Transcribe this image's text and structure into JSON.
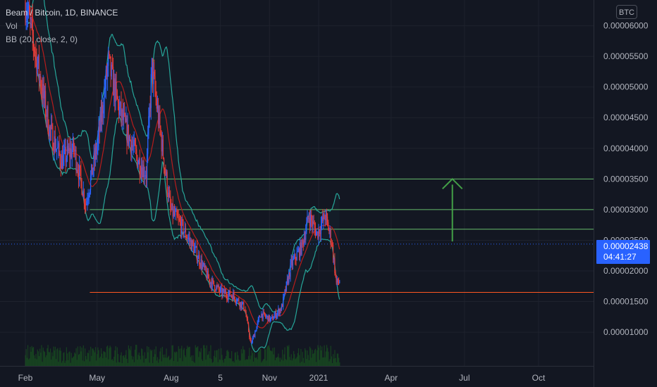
{
  "legend": {
    "symbol": "Beam / Bitcoin, 1D, BINANCE",
    "volume": "Vol",
    "indicator": "BB (20, close, 2, 0)"
  },
  "currency_button": "BTC",
  "price_tag": {
    "price": "0.00002438",
    "countdown": "04:41:27",
    "color": "#2962ff"
  },
  "colors": {
    "background": "#131722",
    "grid": "#1e222d",
    "up": "#2962ff",
    "down": "#e53935",
    "bb_band": "#26a69a",
    "bb_basis": "#b71c1c",
    "support_green": "#66bb6a",
    "support_orange": "#ff5722",
    "arrow": "#43a047",
    "volume": "#1b5e20"
  },
  "chart_data": {
    "type": "candlestick",
    "title": "Beam / Bitcoin, 1D, BINANCE",
    "x_ticks": [
      "Feb",
      "May",
      "Aug",
      "5",
      "Nov",
      "2021",
      "Apr",
      "Jul",
      "Oct"
    ],
    "y_ticks": [
      "0.00006000",
      "0.00005500",
      "0.00005000",
      "0.00004500",
      "0.00004000",
      "0.00003500",
      "0.00003000",
      "0.00002500",
      "0.00002000",
      "0.00001500",
      "0.00001000"
    ],
    "ylim": [
      4.5e-06,
      6.42e-05
    ],
    "price_path": [
      {
        "t": 0,
        "price": 6.4e-05
      },
      {
        "t": 12,
        "price": 5.6e-05
      },
      {
        "t": 30,
        "price": 4.3e-05
      },
      {
        "t": 45,
        "price": 3.8e-05
      },
      {
        "t": 60,
        "price": 4e-05
      },
      {
        "t": 75,
        "price": 3.1e-05
      },
      {
        "t": 90,
        "price": 4.1e-05
      },
      {
        "t": 103,
        "price": 5.4e-05
      },
      {
        "t": 115,
        "price": 4.7e-05
      },
      {
        "t": 125,
        "price": 4.3e-05
      },
      {
        "t": 140,
        "price": 3.8e-05
      },
      {
        "t": 150,
        "price": 3.6e-05
      },
      {
        "t": 157,
        "price": 5.3e-05
      },
      {
        "t": 167,
        "price": 4.3e-05
      },
      {
        "t": 180,
        "price": 3e-05
      },
      {
        "t": 195,
        "price": 2.7e-05
      },
      {
        "t": 212,
        "price": 2.3e-05
      },
      {
        "t": 228,
        "price": 1.85e-05
      },
      {
        "t": 243,
        "price": 1.65e-05
      },
      {
        "t": 258,
        "price": 1.6e-05
      },
      {
        "t": 272,
        "price": 1.4e-05
      },
      {
        "t": 280,
        "price": 8e-06
      },
      {
        "t": 292,
        "price": 1.3e-05
      },
      {
        "t": 305,
        "price": 1.2e-05
      },
      {
        "t": 318,
        "price": 1.4e-05
      },
      {
        "t": 330,
        "price": 2.1e-05
      },
      {
        "t": 343,
        "price": 2.4e-05
      },
      {
        "t": 352,
        "price": 2.9e-05
      },
      {
        "t": 362,
        "price": 2.6e-05
      },
      {
        "t": 372,
        "price": 2.9e-05
      },
      {
        "t": 380,
        "price": 2.5e-05
      },
      {
        "t": 386,
        "price": 1.8e-05
      },
      {
        "t": 390,
        "price": 1.82e-05
      }
    ],
    "x_tick_positions_days": [
      0,
      89,
      181,
      242,
      303,
      364,
      454,
      545,
      637
    ],
    "start_label": "Feb",
    "total_days": 715,
    "horizontal_levels": [
      {
        "price": 3.5e-05,
        "color": "#66bb6a"
      },
      {
        "price": 3e-05,
        "color": "#66bb6a"
      },
      {
        "price": 2.68e-05,
        "color": "#66bb6a"
      },
      {
        "price": 1.65e-05,
        "color": "#ff5722"
      }
    ],
    "level_start_day": 80,
    "current_price_line": 2.438e-05,
    "bollinger": {
      "length": 20,
      "source": "close",
      "mult": 2,
      "offset": 0
    },
    "annotation": {
      "type": "arrow-up",
      "day": 530,
      "from_price": 2.48e-05,
      "to_price": 3.5e-05
    }
  }
}
